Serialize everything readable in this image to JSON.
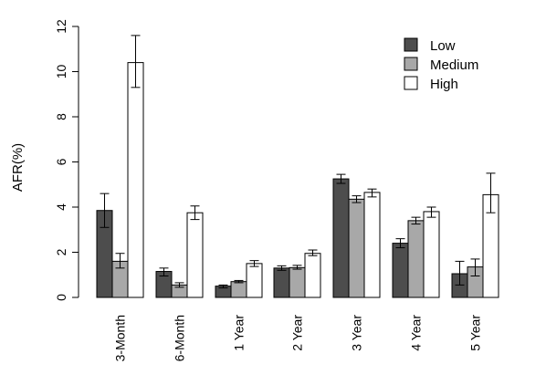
{
  "chart_data": {
    "type": "bar",
    "title": "",
    "xlabel": "",
    "ylabel": "AFR(%)",
    "ylim": [
      0,
      12
    ],
    "yticks": [
      0,
      2,
      4,
      6,
      8,
      10,
      12
    ],
    "grid": false,
    "legend_position": "top-right",
    "categories": [
      "3-Month",
      "6-Month",
      "1 Year",
      "2 Year",
      "3 Year",
      "4 Year",
      "5 Year"
    ],
    "series": [
      {
        "name": "Low",
        "color": "#4d4d4d",
        "values": [
          3.85,
          1.15,
          0.5,
          1.3,
          5.25,
          2.4,
          1.05
        ],
        "error_low": [
          3.1,
          0.95,
          0.42,
          1.2,
          5.05,
          2.2,
          0.55
        ],
        "error_high": [
          4.6,
          1.3,
          0.55,
          1.4,
          5.45,
          2.6,
          1.6
        ]
      },
      {
        "name": "Medium",
        "color": "#a8a8a8",
        "values": [
          1.6,
          0.55,
          0.7,
          1.32,
          4.35,
          3.4,
          1.35
        ],
        "error_low": [
          1.3,
          0.45,
          0.65,
          1.25,
          4.2,
          3.25,
          0.95
        ],
        "error_high": [
          1.95,
          0.65,
          0.75,
          1.42,
          4.5,
          3.55,
          1.7
        ]
      },
      {
        "name": "High",
        "color": "#ffffff",
        "values": [
          10.4,
          3.75,
          1.5,
          1.95,
          4.65,
          3.8,
          4.55
        ],
        "error_low": [
          9.3,
          3.45,
          1.37,
          1.85,
          4.45,
          3.55,
          3.75
        ],
        "error_high": [
          11.6,
          4.05,
          1.63,
          2.1,
          4.8,
          4.0,
          5.5
        ]
      }
    ]
  }
}
